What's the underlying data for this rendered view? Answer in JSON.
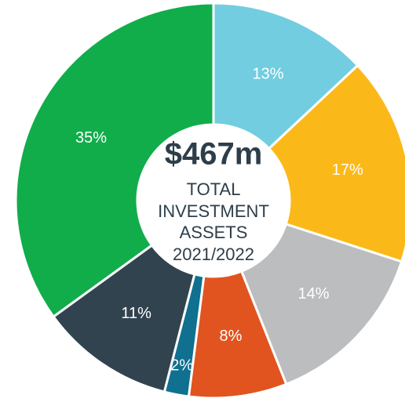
{
  "chart_data": {
    "type": "donut",
    "values": [
      13,
      17,
      14,
      8,
      2,
      11,
      35
    ],
    "value_labels": [
      "13%",
      "17%",
      "14%",
      "8%",
      "2%",
      "11%",
      "35%"
    ],
    "colors": [
      "#72cde0",
      "#fbb919",
      "#bcbdbf",
      "#e1541f",
      "#10708f",
      "#324350",
      "#11ad4b"
    ],
    "center_title": "$467m",
    "center_lines": [
      "TOTAL",
      "INVESTMENT",
      "ASSETS",
      "2021/2022"
    ]
  }
}
